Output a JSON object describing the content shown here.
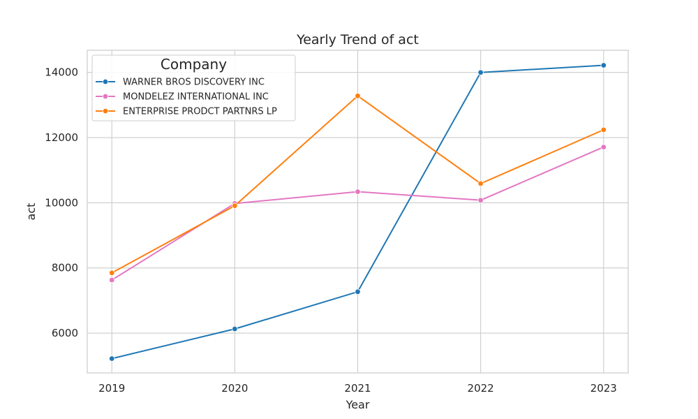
{
  "chart_data": {
    "type": "line",
    "title": "Yearly Trend of act",
    "xlabel": "Year",
    "ylabel": "act",
    "x": [
      2019,
      2020,
      2021,
      2022,
      2023
    ],
    "x_tick_labels": [
      "2019",
      "2020",
      "2021",
      "2022",
      "2023"
    ],
    "y_ticks": [
      6000,
      8000,
      10000,
      12000,
      14000
    ],
    "y_tick_labels": [
      "6000",
      "8000",
      "10000",
      "12000",
      "14000"
    ],
    "xlim": [
      2018.8,
      2023.2
    ],
    "ylim": [
      4780,
      14680
    ],
    "grid": true,
    "legend": {
      "title": "Company",
      "placement": "top-left"
    },
    "series": [
      {
        "name": "WARNER BROS DISCOVERY INC",
        "color": "#1f77b4",
        "values": [
          5220,
          6130,
          7270,
          14000,
          14220
        ]
      },
      {
        "name": "MONDELEZ INTERNATIONAL INC",
        "color": "#e377c2",
        "values": [
          7630,
          9980,
          10340,
          10080,
          11710
        ]
      },
      {
        "name": "ENTERPRISE PRODCT PARTNRS LP",
        "color": "#ff7f0e",
        "values": [
          7850,
          9910,
          13280,
          10590,
          12240
        ]
      }
    ]
  }
}
